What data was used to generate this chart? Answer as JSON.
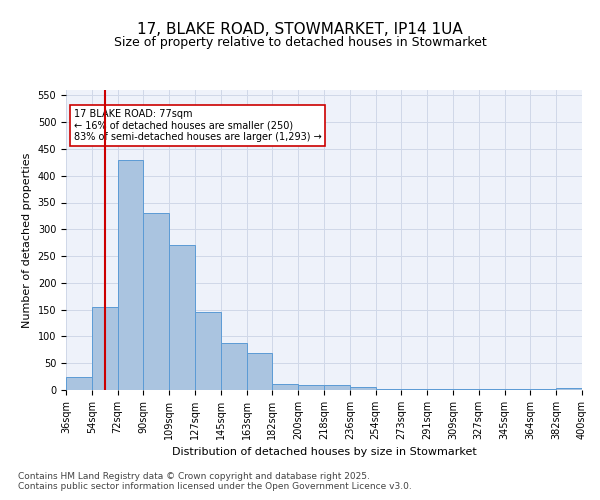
{
  "title_line1": "17, BLAKE ROAD, STOWMARKET, IP14 1UA",
  "title_line2": "Size of property relative to detached houses in Stowmarket",
  "xlabel": "Distribution of detached houses by size in Stowmarket",
  "ylabel": "Number of detached properties",
  "tick_labels": [
    "36sqm",
    "54sqm",
    "72sqm",
    "90sqm",
    "109sqm",
    "127sqm",
    "145sqm",
    "163sqm",
    "182sqm",
    "200sqm",
    "218sqm",
    "236sqm",
    "254sqm",
    "273sqm",
    "291sqm",
    "309sqm",
    "327sqm",
    "345sqm",
    "364sqm",
    "382sqm",
    "400sqm"
  ],
  "bar_values": [
    25,
    155,
    430,
    330,
    270,
    145,
    88,
    70,
    12,
    9,
    9,
    5,
    2,
    2,
    2,
    1,
    1,
    1,
    1,
    3
  ],
  "bar_color": "#aac4e0",
  "bar_edge_color": "#5b9bd5",
  "grid_color": "#d0d8e8",
  "bg_color": "#eef2fa",
  "annotation_text": "17 BLAKE ROAD: 77sqm\n← 16% of detached houses are smaller (250)\n83% of semi-detached houses are larger (1,293) →",
  "annotation_box_color": "#ffffff",
  "annotation_box_edge": "#cc0000",
  "vline_x": 1.5,
  "vline_color": "#cc0000",
  "ylim": [
    0,
    560
  ],
  "yticks": [
    0,
    50,
    100,
    150,
    200,
    250,
    300,
    350,
    400,
    450,
    500,
    550
  ],
  "footer_line1": "Contains HM Land Registry data © Crown copyright and database right 2025.",
  "footer_line2": "Contains public sector information licensed under the Open Government Licence v3.0.",
  "title_fontsize": 11,
  "subtitle_fontsize": 9,
  "axis_label_fontsize": 8,
  "tick_fontsize": 7,
  "footer_fontsize": 6.5
}
